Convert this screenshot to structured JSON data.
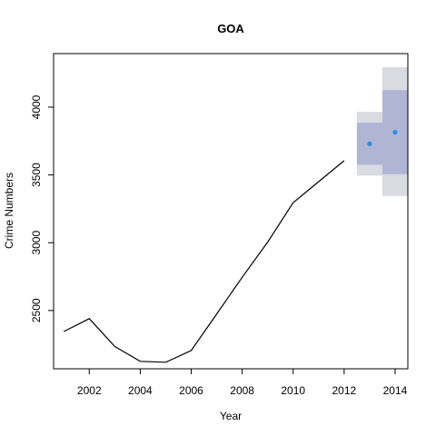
{
  "chart_data": {
    "type": "line",
    "title": "GOA",
    "xlabel": "Year",
    "ylabel": "Crime Numbers",
    "xlim": [
      2000.6,
      2014.5
    ],
    "ylim": [
      2070,
      4395
    ],
    "x_ticks": [
      2002,
      2004,
      2006,
      2008,
      2010,
      2012,
      2014
    ],
    "y_ticks": [
      2500,
      3000,
      3500,
      4000
    ],
    "grid": false,
    "series": [
      {
        "type": "line",
        "color": "#000000",
        "x": [
          2001,
          2002,
          2003,
          2004,
          2005,
          2006,
          2007,
          2008,
          2009,
          2010,
          2011,
          2012
        ],
        "y": [
          2345,
          2440,
          2235,
          2125,
          2118,
          2205,
          2475,
          2745,
          3005,
          3295,
          3450,
          3605
        ]
      }
    ],
    "forecast": {
      "points": {
        "color": "#2b8fd6",
        "x": [
          2013,
          2014
        ],
        "y": [
          3730,
          3815
        ]
      },
      "interval_80": {
        "color": "#b1b5d5",
        "x": [
          2013,
          2014
        ],
        "lower": [
          3575,
          3505
        ],
        "upper": [
          3885,
          4125
        ]
      },
      "interval_95": {
        "color": "#dadae1",
        "x": [
          2013,
          2014
        ],
        "lower": [
          3495,
          3345
        ],
        "upper": [
          3965,
          4295
        ]
      }
    }
  }
}
